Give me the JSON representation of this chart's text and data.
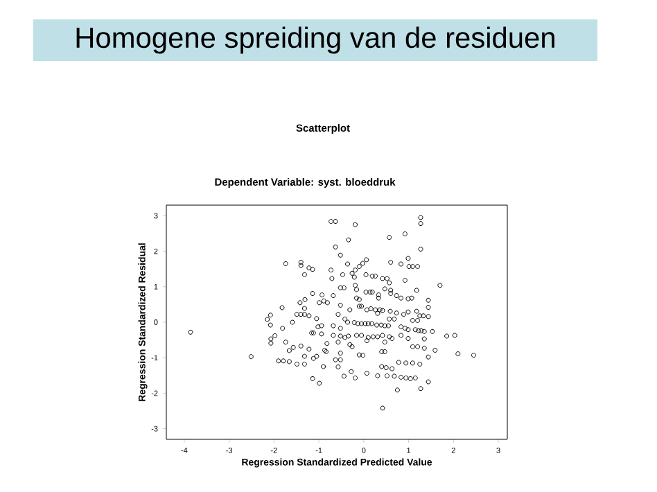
{
  "chart_data": {
    "type": "scatter",
    "title": "Scatterplot",
    "subtitle": "Dependent Variable: syst. bloeddruk",
    "annotations": [
      "Homogene spreiding van de residuen"
    ],
    "xlabel": "Regression Standardized Predicted Value",
    "ylabel": "Regression Standardized Residual",
    "xlim": [
      -4.4,
      3.2
    ],
    "ylim": [
      -3.3,
      3.3
    ],
    "xticks": [
      -4,
      -3,
      -2,
      -1,
      0,
      1,
      2,
      3
    ],
    "yticks": [
      -3,
      -2,
      -1,
      0,
      1,
      2,
      3
    ],
    "marker": "circle",
    "series": [
      {
        "color": "#000000",
        "x": [
          -3.86,
          -2.51,
          -1.74,
          -1.82,
          -2.15,
          -2.08,
          -2.08,
          -2.07,
          -2.07,
          -1.98,
          -1.81,
          -1.74,
          -1.59,
          -1.66,
          -1.57,
          -1.9,
          -1.79,
          -1.66,
          -1.49,
          -1.32,
          -1.4,
          -1.32,
          -1.49,
          -1.4,
          -1.32,
          -1.42,
          -1.32,
          -1.31,
          -1.4,
          -1.4,
          -1.32,
          -1.22,
          -1.14,
          -1.22,
          -1.22,
          -1.16,
          -1.12,
          -1.12,
          -1.05,
          -1.14,
          -0.99,
          -1.14,
          -1.05,
          -1.02,
          -0.99,
          -0.94,
          -0.94,
          -0.9,
          -0.87,
          -0.82,
          -0.84,
          -0.93,
          -0.89,
          -0.81,
          -0.73,
          -0.63,
          -0.19,
          1.27,
          1.27,
          0.92,
          0.57,
          -0.34,
          1.27,
          -0.63,
          -0.52,
          0.06,
          -0.02,
          -0.1,
          -0.19,
          -0.26,
          -0.73,
          -0.36,
          0.83,
          0.99,
          1.01,
          1.2,
          1.09,
          0.6,
          1.7,
          1.18,
          0.05,
          0.19,
          0.26,
          0.42,
          0.52,
          0.57,
          0.92,
          -0.21,
          -0.47,
          -0.71,
          -0.52,
          -0.44,
          -0.19,
          -0.16,
          0.05,
          0.14,
          0.19,
          0.33,
          0.33,
          0.47,
          0.6,
          0.6,
          0.73,
          0.83,
          0.99,
          1.07,
          1.44,
          1.44,
          -0.52,
          -0.16,
          -0.1,
          -0.1,
          -0.05,
          -0.68,
          0.26,
          0.36,
          0.42,
          0.31,
          0.59,
          0.73,
          0.89,
          1.18,
          1.25,
          1.33,
          1.44,
          0.99,
          -0.31,
          -0.57,
          -0.42,
          -0.21,
          -0.13,
          -0.05,
          0.03,
          0.1,
          0.18,
          -0.36,
          0.29,
          0.39,
          0.47,
          0.55,
          0.83,
          0.92,
          0.99,
          1.15,
          1.22,
          1.28,
          1.35,
          1.53,
          -0.68,
          -0.52,
          -0.68,
          -0.52,
          -0.42,
          -0.34,
          -0.16,
          -0.05,
          0.1,
          0.21,
          0.31,
          0.42,
          0.57,
          0.63,
          0.83,
          0.99,
          1.35,
          1.85,
          2.03,
          -0.57,
          -0.31,
          -0.26,
          0.07,
          0.47,
          1.09,
          1.2,
          1.35,
          1.59,
          2.1,
          2.45,
          -0.52,
          -0.1,
          -0.02,
          0.4,
          0.47,
          1.44,
          0.78,
          0.94,
          1.09,
          1.25,
          -0.63,
          -0.52,
          -0.57,
          0.4,
          0.5,
          0.63,
          -0.28,
          0.07,
          -0.44,
          -0.19,
          0.31,
          0.52,
          0.68,
          0.83,
          0.94,
          1.04,
          1.15,
          1.44,
          1.27,
          0.75,
          0.42,
          0.07,
          0.16,
          0.57,
          0.68,
          1.09,
          1.2
        ],
        "values": [
          -0.28,
          -0.97,
          1.65,
          0.41,
          0.08,
          0.2,
          -0.08,
          -0.47,
          -0.59,
          -0.38,
          -0.17,
          -0.56,
          0.0,
          -0.8,
          -0.71,
          -1.09,
          -1.09,
          -1.11,
          -1.18,
          -1.18,
          -0.67,
          -0.96,
          0.22,
          0.22,
          0.22,
          0.55,
          0.39,
          0.64,
          1.69,
          1.6,
          1.34,
          1.53,
          1.49,
          0.18,
          -0.76,
          -0.3,
          -0.3,
          -1.02,
          -0.96,
          -1.59,
          -1.72,
          0.81,
          0.1,
          -0.13,
          0.55,
          -0.33,
          -0.1,
          -1.25,
          -0.79,
          -0.6,
          -0.83,
          0.77,
          0.6,
          0.55,
          2.84,
          2.84,
          2.75,
          2.95,
          2.78,
          2.49,
          2.39,
          2.32,
          2.06,
          2.12,
          1.89,
          1.76,
          1.66,
          1.57,
          1.47,
          1.38,
          1.47,
          1.64,
          1.64,
          1.8,
          1.57,
          1.57,
          1.57,
          1.69,
          1.04,
          0.9,
          1.34,
          1.3,
          1.3,
          1.23,
          1.23,
          1.11,
          1.18,
          1.27,
          1.34,
          1.23,
          0.97,
          0.97,
          1.04,
          0.92,
          0.85,
          0.85,
          0.85,
          0.77,
          0.68,
          0.94,
          0.9,
          0.81,
          0.75,
          0.68,
          0.66,
          0.68,
          0.62,
          0.42,
          0.48,
          0.68,
          0.64,
          0.45,
          0.45,
          0.75,
          0.35,
          0.35,
          0.33,
          0.25,
          0.31,
          0.26,
          0.22,
          0.31,
          0.18,
          0.18,
          0.16,
          0.29,
          0.35,
          0.22,
          0.09,
          -0.01,
          -0.04,
          -0.04,
          -0.04,
          -0.04,
          -0.04,
          0.0,
          -0.08,
          -0.08,
          -0.1,
          -0.1,
          -0.13,
          -0.17,
          -0.21,
          -0.21,
          -0.24,
          -0.24,
          -0.26,
          -0.26,
          -0.1,
          -0.17,
          -0.37,
          -0.39,
          -0.43,
          -0.39,
          -0.37,
          -0.37,
          -0.43,
          -0.41,
          -0.41,
          -0.37,
          -0.41,
          -0.46,
          -0.37,
          -0.46,
          -0.47,
          -0.39,
          -0.37,
          -0.56,
          -0.63,
          -0.69,
          -0.52,
          -0.56,
          -0.69,
          -0.69,
          -0.73,
          -0.79,
          -0.89,
          -0.93,
          -0.87,
          -0.92,
          -0.93,
          -0.83,
          -0.83,
          -0.98,
          -1.13,
          -1.15,
          -1.15,
          -1.18,
          -1.06,
          -1.06,
          -1.26,
          -1.25,
          -1.28,
          -1.31,
          -1.39,
          -1.44,
          -1.52,
          -1.57,
          -1.51,
          -1.51,
          -1.52,
          -1.55,
          -1.57,
          -1.59,
          -1.57,
          -1.68,
          -1.87,
          -1.91,
          -2.42,
          0.35,
          0.38,
          0.09,
          0.09,
          0.05,
          0.05
        ]
      }
    ]
  }
}
